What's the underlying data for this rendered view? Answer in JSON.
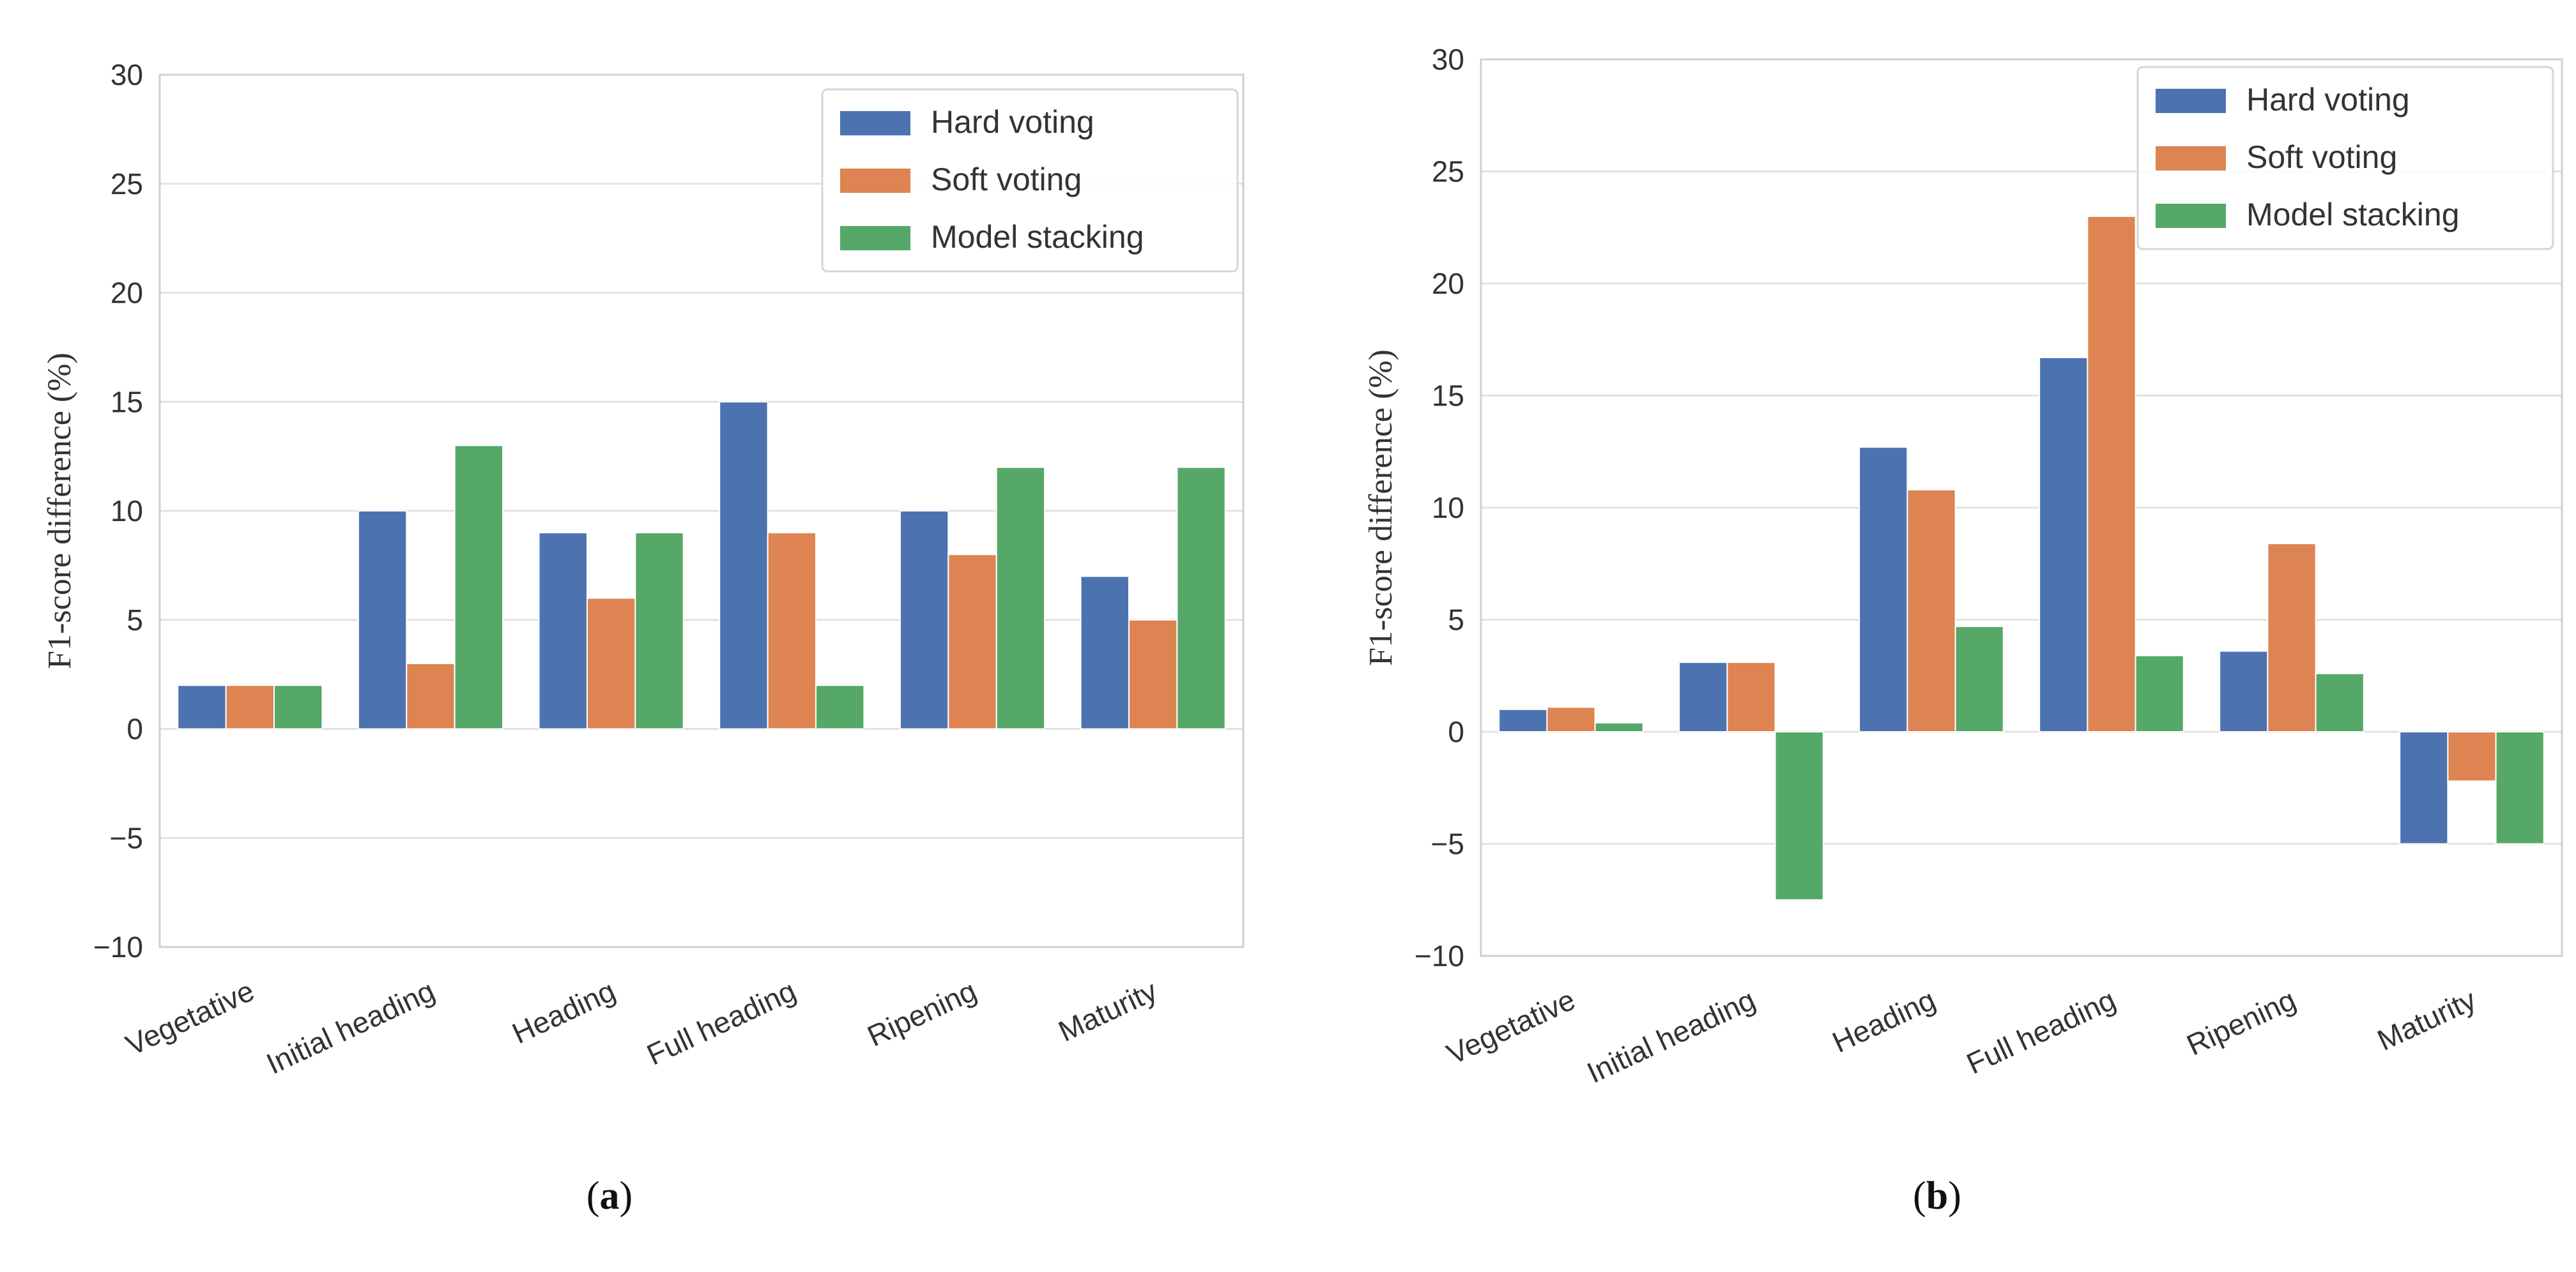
{
  "chart_data": [
    {
      "type": "bar",
      "panel_label": "a",
      "categories": [
        "Vegetative",
        "Initial heading",
        "Heading",
        "Full heading",
        "Ripening",
        "Maturity"
      ],
      "series": [
        {
          "name": "Hard voting",
          "color": "#4c72b0",
          "values": [
            2,
            10,
            9,
            15,
            10,
            7
          ]
        },
        {
          "name": "Soft voting",
          "color": "#dd8452",
          "values": [
            2,
            3,
            6,
            9,
            8,
            5
          ]
        },
        {
          "name": "Model stacking",
          "color": "#55a868",
          "values": [
            2,
            13,
            9,
            2,
            12,
            12
          ]
        }
      ],
      "ylabel": "F1-score difference (%)",
      "ylim": [
        -10,
        30
      ],
      "yticks": [
        -10,
        -5,
        0,
        5,
        10,
        15,
        20,
        25,
        30
      ],
      "ytick_labels": [
        "−10",
        "−5",
        "0",
        "5",
        "10",
        "15",
        "20",
        "25",
        "30"
      ],
      "grid": true,
      "legend_position": "top-right"
    },
    {
      "type": "bar",
      "panel_label": "b",
      "categories": [
        "Vegetative",
        "Initial heading",
        "Heading",
        "Full heading",
        "Ripening",
        "Maturity"
      ],
      "series": [
        {
          "name": "Hard voting",
          "color": "#4c72b0",
          "values": [
            1,
            3.1,
            12.7,
            16.7,
            3.6,
            -5
          ]
        },
        {
          "name": "Soft voting",
          "color": "#dd8452",
          "values": [
            1.1,
            3.1,
            10.8,
            23,
            8.4,
            -2.2
          ]
        },
        {
          "name": "Model stacking",
          "color": "#55a868",
          "values": [
            0.4,
            -7.5,
            4.7,
            3.4,
            2.6,
            -5
          ]
        }
      ],
      "ylabel": "F1-score difference (%)",
      "ylim": [
        -10,
        30
      ],
      "yticks": [
        -10,
        -5,
        0,
        5,
        10,
        15,
        20,
        25,
        30
      ],
      "ytick_labels": [
        "−10",
        "−5",
        "0",
        "5",
        "10",
        "15",
        "20",
        "25",
        "30"
      ],
      "grid": true,
      "legend_position": "top-right"
    }
  ]
}
